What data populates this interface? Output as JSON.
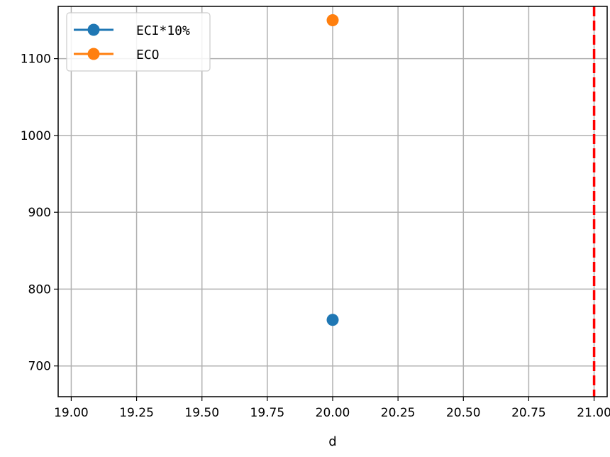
{
  "chart_data": {
    "type": "scatter",
    "xlabel": "d",
    "ylabel": "",
    "xlim": [
      18.95,
      21.05
    ],
    "ylim": [
      660,
      1168
    ],
    "x_ticks": [
      "19.00",
      "19.25",
      "19.50",
      "19.75",
      "20.00",
      "20.25",
      "20.50",
      "20.75",
      "21.00"
    ],
    "x_tick_values": [
      19.0,
      19.25,
      19.5,
      19.75,
      20.0,
      20.25,
      20.5,
      20.75,
      21.0
    ],
    "y_ticks": [
      "700",
      "800",
      "900",
      "1000",
      "1100"
    ],
    "y_tick_values": [
      700,
      800,
      900,
      1000,
      1100
    ],
    "grid": true,
    "legend_position": "top-left",
    "series": [
      {
        "name": "ECI*10%",
        "color": "#1f77b4",
        "x": [
          20.0
        ],
        "y": [
          760
        ]
      },
      {
        "name": "ECO",
        "color": "#ff7f0e",
        "x": [
          20.0
        ],
        "y": [
          1150
        ]
      }
    ],
    "vlines": [
      {
        "x": 21.0,
        "color": "#ff0000",
        "style": "dashed"
      }
    ]
  }
}
